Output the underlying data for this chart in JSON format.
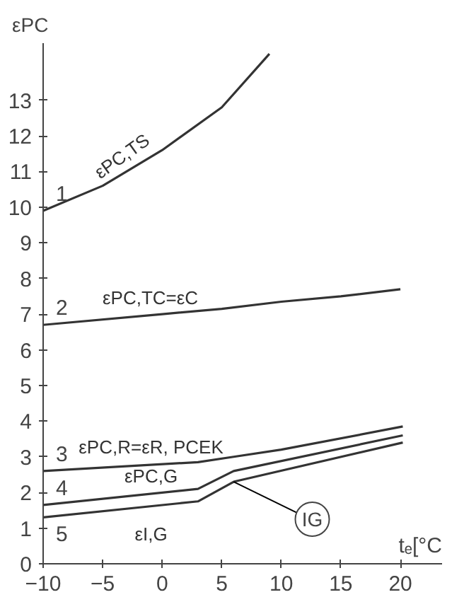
{
  "chart_data": {
    "type": "line",
    "xlabel": "tₑ[°C",
    "ylabel": "εPC",
    "xlim": [
      -10,
      23.5
    ],
    "ylim": [
      0,
      14.6
    ],
    "xticks": [
      -10,
      -5,
      0,
      5,
      10,
      15,
      20
    ],
    "yticks": [
      0,
      1,
      2,
      3,
      4,
      5,
      6,
      7,
      8,
      9,
      10,
      11,
      12,
      13
    ],
    "grid": false,
    "legend": false,
    "marker": "none",
    "line_style": "solid",
    "series": [
      {
        "name": "1",
        "color": "#333333",
        "x": [
          -10,
          -5,
          0,
          5,
          9
        ],
        "values": [
          9.9,
          10.6,
          11.6,
          12.8,
          14.3
        ]
      },
      {
        "name": "2",
        "color": "#333333",
        "x": [
          -10,
          0,
          5,
          10,
          15,
          20
        ],
        "values": [
          6.7,
          7.0,
          7.15,
          7.35,
          7.5,
          7.7
        ]
      },
      {
        "name": "3",
        "color": "#333333",
        "x": [
          -10,
          3,
          6,
          10,
          20.2
        ],
        "values": [
          2.6,
          2.85,
          3.0,
          3.2,
          3.85
        ]
      },
      {
        "name": "4",
        "color": "#333333",
        "x": [
          -10,
          3,
          6,
          20.2
        ],
        "values": [
          1.65,
          2.1,
          2.6,
          3.6
        ]
      },
      {
        "name": "5",
        "color": "#333333",
        "x": [
          -10,
          3,
          6,
          20.2
        ],
        "values": [
          1.3,
          1.75,
          2.3,
          3.4
        ]
      }
    ],
    "annotations": [
      "εPC,TS",
      "εPC,TC=εC",
      "εPC,R=εR, PCEK",
      "εPC,G",
      "εI,G",
      {
        "text": "IG",
        "x": 6,
        "y": 2.3
      }
    ]
  }
}
